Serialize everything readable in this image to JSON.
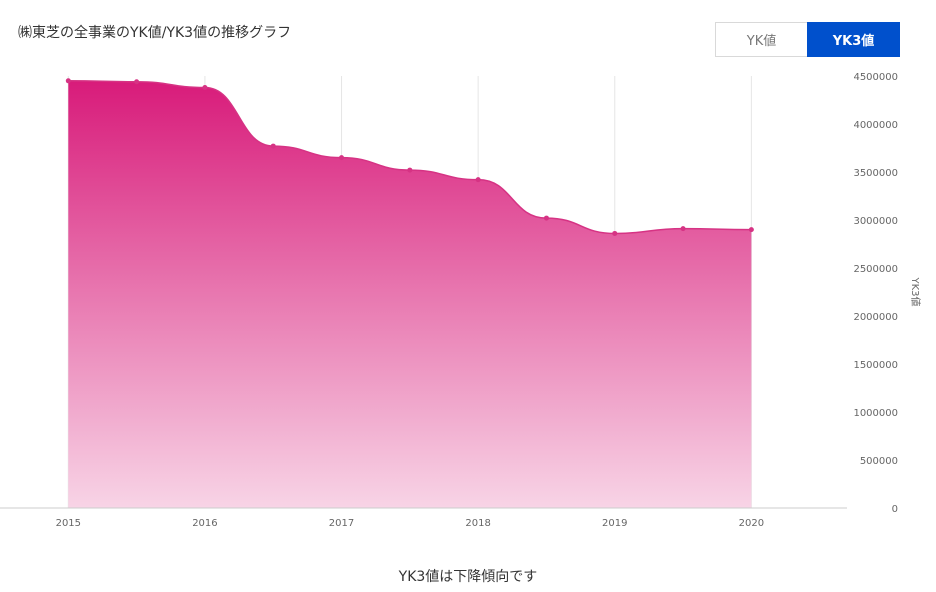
{
  "header": {
    "title": "㈱東芝の全事業のYK値/YK3値の推移グラフ"
  },
  "toggle": {
    "yk_label": "YK値",
    "yk3_label": "YK3値",
    "active": "YK3値"
  },
  "caption": "YK3値は下降傾向です",
  "colors": {
    "fill_top": "#d81b7a",
    "fill_bottom": "#f8d4e6",
    "line": "#d63384",
    "active_button": "#0050cc"
  },
  "chart_data": {
    "type": "area",
    "x": [
      2015,
      2015.5,
      2016,
      2016.5,
      2017,
      2017.5,
      2018,
      2018.5,
      2019,
      2019.5,
      2020
    ],
    "values": [
      4450000,
      4440000,
      4380000,
      3770000,
      3650000,
      3520000,
      3420000,
      3020000,
      2860000,
      2910000,
      2900000
    ],
    "x_ticks": [
      "2015",
      "2016",
      "2017",
      "2018",
      "2019",
      "2020"
    ],
    "y_ticks": [
      "0",
      "500000",
      "1000000",
      "1500000",
      "2000000",
      "2500000",
      "3000000",
      "3500000",
      "4000000",
      "4500000"
    ],
    "xlim": [
      2014.5,
      2020.7
    ],
    "ylim": [
      0,
      4500000
    ],
    "ylabel": "YK3値",
    "y_axis_position": "right",
    "grid": "vertical"
  }
}
